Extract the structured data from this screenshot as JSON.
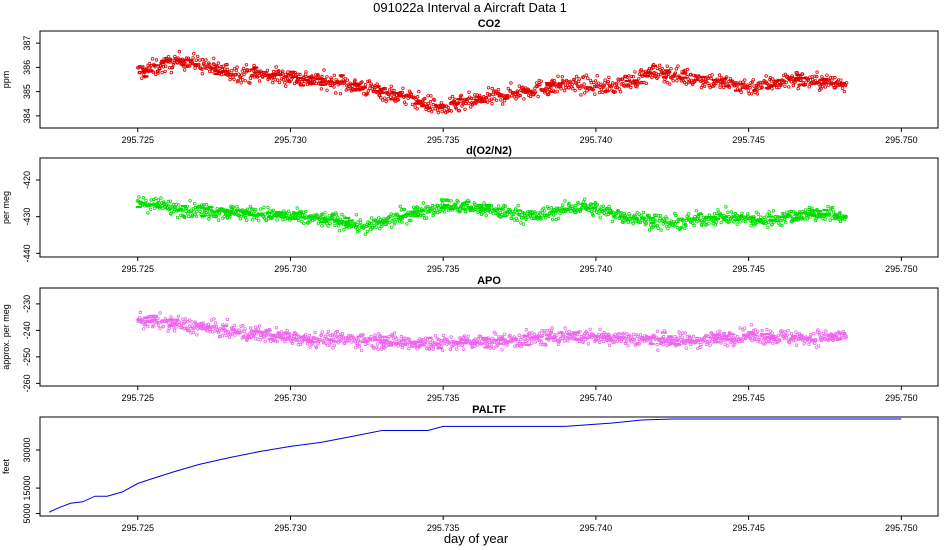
{
  "figure": {
    "title": "091022a   Interval a Aircraft Data 1",
    "xlabel": "day of year"
  },
  "colors": {
    "co2": "#e00000",
    "o2n2": "#00dd00",
    "apo": "#ee66ee",
    "paltf": "#0000dd",
    "axis": "#000000"
  },
  "chart_data": [
    {
      "type": "scatter",
      "title": "CO2",
      "ylabel": "ppm",
      "xlim": [
        295.7218,
        295.7512
      ],
      "ylim": [
        383.5,
        387.5
      ],
      "xticks": [
        295.725,
        295.73,
        295.735,
        295.74,
        295.745,
        295.75
      ],
      "xtick_labels": [
        "295.725",
        "295.730",
        "295.735",
        "295.740",
        "295.745",
        "295.750"
      ],
      "yticks": [
        384,
        385,
        386,
        387
      ],
      "ytick_labels": [
        "384",
        "385",
        "386",
        "387"
      ],
      "x_range": [
        295.725,
        295.7482
      ],
      "trend": [
        [
          295.725,
          385.8
        ],
        [
          295.7265,
          386.3
        ],
        [
          295.728,
          385.8
        ],
        [
          295.73,
          385.6
        ],
        [
          295.732,
          385.3
        ],
        [
          295.734,
          384.7
        ],
        [
          295.735,
          384.3
        ],
        [
          295.736,
          384.6
        ],
        [
          295.7375,
          385.0
        ],
        [
          295.739,
          385.3
        ],
        [
          295.7405,
          385.2
        ],
        [
          295.742,
          385.8
        ],
        [
          295.7435,
          385.5
        ],
        [
          295.745,
          385.2
        ],
        [
          295.7465,
          385.5
        ],
        [
          295.7482,
          385.3
        ]
      ],
      "noise": 0.6
    },
    {
      "type": "scatter",
      "title": "d(O2/N2)",
      "ylabel": "per meg",
      "xlim": [
        295.7218,
        295.7512
      ],
      "ylim": [
        -441,
        -414
      ],
      "xticks": [
        295.725,
        295.73,
        295.735,
        295.74,
        295.745,
        295.75
      ],
      "xtick_labels": [
        "295.725",
        "295.730",
        "295.735",
        "295.740",
        "295.745",
        "295.750"
      ],
      "yticks": [
        -420,
        -430,
        -440
      ],
      "ytick_labels": [
        "-420",
        "-430",
        "-440"
      ],
      "x_range": [
        295.725,
        295.7482
      ],
      "trend": [
        [
          295.725,
          -426.0
        ],
        [
          295.7265,
          -428.0
        ],
        [
          295.7285,
          -429.0
        ],
        [
          295.73,
          -430.0
        ],
        [
          295.7315,
          -431.0
        ],
        [
          295.7325,
          -433.0
        ],
        [
          295.734,
          -429.0
        ],
        [
          295.735,
          -427.0
        ],
        [
          295.7365,
          -428.0
        ],
        [
          295.738,
          -430.0
        ],
        [
          295.7395,
          -427.0
        ],
        [
          295.741,
          -430.0
        ],
        [
          295.7425,
          -432.0
        ],
        [
          295.744,
          -430.0
        ],
        [
          295.7455,
          -431.0
        ],
        [
          295.747,
          -429.0
        ],
        [
          295.7482,
          -430.0
        ]
      ],
      "noise": 3.5
    },
    {
      "type": "scatter",
      "title": "APO",
      "ylabel": "approx. per meg",
      "xlim": [
        295.7218,
        295.7512
      ],
      "ylim": [
        -261,
        -224
      ],
      "xticks": [
        295.725,
        295.73,
        295.735,
        295.74,
        295.745,
        295.75
      ],
      "xtick_labels": [
        "295.725",
        "295.730",
        "295.735",
        "295.740",
        "295.745",
        "295.750"
      ],
      "yticks": [
        -230,
        -240,
        -250,
        -260
      ],
      "ytick_labels": [
        "-230",
        "-240",
        "-250",
        "-260"
      ],
      "x_range": [
        295.725,
        295.7482
      ],
      "trend": [
        [
          295.725,
          -236.0
        ],
        [
          295.7265,
          -238.0
        ],
        [
          295.7285,
          -241.0
        ],
        [
          295.7305,
          -243.0
        ],
        [
          295.733,
          -244.0
        ],
        [
          295.735,
          -245.0
        ],
        [
          295.737,
          -244.0
        ],
        [
          295.739,
          -242.0
        ],
        [
          295.741,
          -243.0
        ],
        [
          295.743,
          -244.0
        ],
        [
          295.745,
          -242.0
        ],
        [
          295.747,
          -243.0
        ],
        [
          295.7482,
          -242.0
        ]
      ],
      "noise": 5.0
    },
    {
      "type": "line",
      "title": "PALTF",
      "ylabel": "feet",
      "xlim": [
        295.7218,
        295.7512
      ],
      "ylim": [
        4000,
        43000
      ],
      "xticks": [
        295.725,
        295.73,
        295.735,
        295.74,
        295.745,
        295.75
      ],
      "xtick_labels": [
        "295.725",
        "295.730",
        "295.735",
        "295.740",
        "295.745",
        "295.750"
      ],
      "yticks": [
        5000,
        15000,
        30000
      ],
      "ytick_labels": [
        "5000",
        "15000",
        "30000"
      ],
      "x": [
        295.7221,
        295.7224,
        295.7228,
        295.7232,
        295.7236,
        295.724,
        295.7245,
        295.725,
        295.7255,
        295.7262,
        295.727,
        295.728,
        295.729,
        295.73,
        295.731,
        295.732,
        295.733,
        295.7335,
        295.7345,
        295.735,
        295.736,
        295.737,
        295.738,
        295.739,
        295.7398,
        295.7405,
        295.7415,
        295.742,
        295.7425,
        295.7435,
        295.745,
        295.747,
        295.75
      ],
      "values": [
        5500,
        7200,
        9000,
        9600,
        11800,
        11800,
        13500,
        16800,
        18800,
        21500,
        24300,
        27000,
        29400,
        31400,
        33000,
        35300,
        37700,
        37700,
        37700,
        39300,
        39300,
        39300,
        39300,
        39300,
        40000,
        40600,
        41800,
        42000,
        42200,
        42200,
        42200,
        42200,
        42200
      ]
    }
  ]
}
